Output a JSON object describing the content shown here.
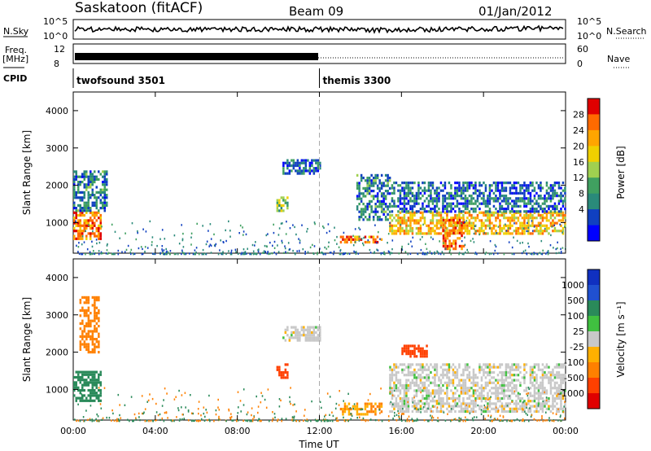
{
  "header": {
    "title": "Saskatoon (fitACF)",
    "beam": "Beam 09",
    "date": "01/Jan/2012"
  },
  "strip": {
    "nsky_label": "N.Sky",
    "nsky_ticks": [
      "10^5",
      "10^0"
    ],
    "nsearch_label": "N.Search",
    "nsearch_ticks": [
      "10^5",
      "10^0"
    ],
    "freq_label_1": "Freq.",
    "freq_label_2": "[MHz]",
    "freq_ticks": [
      "12",
      "8"
    ],
    "nave_label": "Nave",
    "nave_ticks": [
      "60",
      "0"
    ],
    "cpid_label": "CPID",
    "cpid_entries": [
      {
        "name": "twofsound 3501",
        "start_hour": 0
      },
      {
        "name": "themis 3300",
        "start_hour": 12
      }
    ]
  },
  "chart_data": [
    {
      "type": "heatmap",
      "title": "",
      "ylabel": "Slant Range [km]",
      "xlabel": "",
      "xlim": [
        0,
        24
      ],
      "ylim": [
        180,
        4500
      ],
      "yticks": [
        "1000",
        "2000",
        "3000",
        "4000"
      ],
      "colorbar": {
        "label": "Power [dB]",
        "ticks": [
          "28",
          "24",
          "20",
          "16",
          "12",
          "8",
          "4"
        ],
        "colors": [
          "#e00000",
          "#ff6a00",
          "#ffa500",
          "#f0d000",
          "#a0d050",
          "#40a060",
          "#2a8a7a",
          "#1040c0",
          "#0000ff"
        ]
      },
      "regions": [
        {
          "t": [
            0.0,
            1.3
          ],
          "r": [
            600,
            1300
          ],
          "power": 26
        },
        {
          "t": [
            0.0,
            1.6
          ],
          "r": [
            1300,
            2400
          ],
          "power": 8
        },
        {
          "t": [
            9.9,
            10.4
          ],
          "r": [
            1300,
            1700
          ],
          "power": 14
        },
        {
          "t": [
            10.2,
            12.0
          ],
          "r": [
            2300,
            2700
          ],
          "power": 6
        },
        {
          "t": [
            13.0,
            15.0
          ],
          "r": [
            450,
            650
          ],
          "power": 28
        },
        {
          "t": [
            13.8,
            15.4
          ],
          "r": [
            1100,
            2300
          ],
          "power": 8
        },
        {
          "t": [
            15.4,
            24.0
          ],
          "r": [
            700,
            1300
          ],
          "power": 22
        },
        {
          "t": [
            15.5,
            24.0
          ],
          "r": [
            1300,
            2100
          ],
          "power": 6
        },
        {
          "t": [
            18.0,
            19.0
          ],
          "r": [
            300,
            1100
          ],
          "power": 28
        }
      ]
    },
    {
      "type": "heatmap",
      "title": "",
      "ylabel": "Slant Range [km]",
      "xlabel": "Time UT",
      "xlim": [
        0,
        24
      ],
      "ylim": [
        180,
        4500
      ],
      "xticks": [
        "00:00",
        "04:00",
        "08:00",
        "12:00",
        "16:00",
        "20:00",
        "00:00"
      ],
      "yticks": [
        "1000",
        "2000",
        "3000",
        "4000"
      ],
      "colorbar": {
        "label": "Velocity [m s⁻¹]",
        "ticks": [
          "1000",
          "500",
          "100",
          "25",
          "-25",
          "-100",
          "-500",
          "-1000"
        ],
        "colors": [
          "#1030c0",
          "#2050d0",
          "#2a8a5a",
          "#40c040",
          "#c8c8c8",
          "#ffb000",
          "#ff8000",
          "#ff4000",
          "#e00000"
        ]
      },
      "regions": [
        {
          "t": [
            0.0,
            1.3
          ],
          "r": [
            700,
            1500
          ],
          "velocity": 200
        },
        {
          "t": [
            0.3,
            1.2
          ],
          "r": [
            2000,
            3500
          ],
          "velocity": -200
        },
        {
          "t": [
            9.9,
            10.4
          ],
          "r": [
            1300,
            1700
          ],
          "velocity": -600
        },
        {
          "t": [
            10.2,
            12.0
          ],
          "r": [
            2300,
            2700
          ],
          "velocity": 0
        },
        {
          "t": [
            13.0,
            15.0
          ],
          "r": [
            350,
            650
          ],
          "velocity": -100
        },
        {
          "t": [
            15.4,
            24.0
          ],
          "r": [
            400,
            1700
          ],
          "velocity": 0
        },
        {
          "t": [
            16.0,
            17.2
          ],
          "r": [
            1900,
            2200
          ],
          "velocity": -700
        }
      ]
    }
  ]
}
